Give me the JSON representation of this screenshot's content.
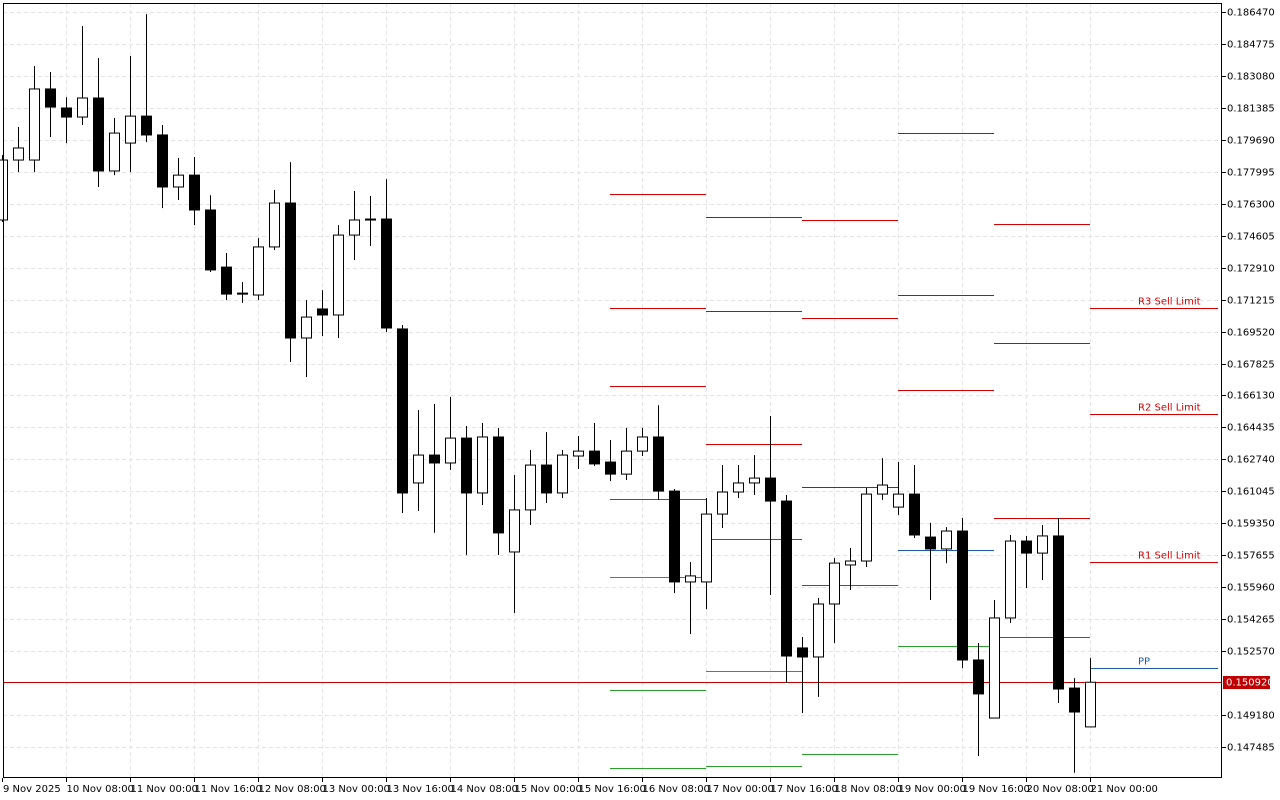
{
  "chart_data": {
    "type": "candlestick",
    "categories": [
      "9 Nov 2025",
      null,
      null,
      null,
      "10 Nov 08:00",
      null,
      null,
      null,
      "11 Nov 00:00",
      null,
      null,
      null,
      "11 Nov 16:00",
      null,
      null,
      null,
      "12 Nov 08:00",
      null,
      null,
      null,
      "13 Nov 00:00",
      null,
      null,
      null,
      "13 Nov 16:00",
      null,
      null,
      null,
      "14 Nov 08:00",
      null,
      null,
      null,
      "15 Nov 00:00",
      null,
      null,
      null,
      "15 Nov 16:00",
      null,
      null,
      null,
      "16 Nov 08:00",
      null,
      null,
      null,
      "17 Nov 00:00",
      null,
      null,
      null,
      "17 Nov 16:00",
      null,
      null,
      null,
      "18 Nov 08:00",
      null,
      null,
      null,
      "19 Nov 00:00",
      null,
      null,
      null,
      "19 Nov 16:00",
      null,
      null,
      null,
      "20 Nov 08:00",
      null,
      null,
      null,
      "21 Nov 00:00"
    ],
    "open": [
      0.17544,
      0.17862,
      0.17862,
      0.18239,
      0.18138,
      0.1809,
      0.18191,
      0.17804,
      0.17952,
      0.18095,
      0.17995,
      0.17719,
      0.17782,
      0.17597,
      0.17294,
      0.17151,
      0.17146,
      0.17401,
      0.17634,
      0.16918,
      0.17072,
      0.1704,
      0.17464,
      0.17549,
      0.17549,
      0.16966,
      0.16149,
      0.16297,
      0.16255,
      0.16387,
      0.16096,
      0.16393,
      0.15783,
      0.16006,
      0.16244,
      0.16096,
      0.16292,
      0.16318,
      0.1626,
      0.16196,
      0.16318,
      0.16393,
      0.16106,
      0.15624,
      0.15624,
      0.15984,
      0.16101,
      0.16149,
      0.16175,
      0.16053,
      0.15274,
      0.15226,
      0.15507,
      0.15714,
      0.15735,
      0.1609,
      0.16021,
      0.1609,
      0.15862,
      0.15799,
      0.15894,
      0.1521,
      0.14902,
      0.15433,
      0.15841,
      0.15777,
      0.15868,
      0.15061,
      0.14855
    ],
    "high": [
      0.17889,
      0.18037,
      0.18361,
      0.18329,
      0.18196,
      0.18573,
      0.18403,
      0.18085,
      0.18414,
      0.18636,
      0.18048,
      0.17873,
      0.17878,
      0.17676,
      0.17369,
      0.17215,
      0.17448,
      0.17703,
      0.17851,
      0.17119,
      0.17172,
      0.17517,
      0.17698,
      0.17671,
      0.17761,
      0.16987,
      0.16536,
      0.16568,
      0.16605,
      0.16451,
      0.16467,
      0.16441,
      0.16191,
      0.16324,
      0.16419,
      0.16324,
      0.16398,
      0.16467,
      0.16377,
      0.16441,
      0.16441,
      0.16562,
      0.16117,
      0.1573,
      0.16069,
      0.16244,
      0.16244,
      0.16297,
      0.16504,
      0.16085,
      0.15332,
      0.15539,
      0.15751,
      0.15804,
      0.16122,
      0.16281,
      0.1626,
      0.16244,
      0.15937,
      0.15915,
      0.15963,
      0.153,
      0.15528,
      0.15873,
      0.15868,
      0.15926,
      0.15963,
      0.15114,
      0.1522
    ],
    "low": [
      0.17533,
      0.17798,
      0.17798,
      0.17984,
      0.17952,
      0.18048,
      0.17719,
      0.17782,
      0.17798,
      0.17957,
      0.17607,
      0.1765,
      0.17517,
      0.17268,
      0.17119,
      0.17104,
      0.17119,
      0.17385,
      0.16791,
      0.16711,
      0.16928,
      0.16918,
      0.17332,
      0.17406,
      0.1695,
      0.1599,
      0.16,
      0.15884,
      0.16218,
      0.15767,
      0.16032,
      0.15767,
      0.15459,
      0.15926,
      0.16043,
      0.16069,
      0.16223,
      0.16239,
      0.16159,
      0.16165,
      0.16292,
      0.16059,
      0.15565,
      0.15348,
      0.1548,
      0.1591,
      0.16069,
      0.16085,
      0.15555,
      0.15088,
      0.14929,
      0.15014,
      0.153,
      0.15581,
      0.15703,
      0.16059,
      0.15979,
      0.15857,
      0.15528,
      0.15724,
      0.15167,
      0.14701,
      0.14902,
      0.15406,
      0.15592,
      0.15634,
      0.14982,
      0.14611,
      0.14855
    ],
    "close": [
      0.17862,
      0.17926,
      0.18239,
      0.18143,
      0.1809,
      0.18191,
      0.17804,
      0.18005,
      0.18095,
      0.17995,
      0.17719,
      0.17782,
      0.17597,
      0.17279,
      0.17151,
      0.17156,
      0.17401,
      0.17634,
      0.16918,
      0.17029,
      0.1704,
      0.17464,
      0.17544,
      0.17544,
      0.16971,
      0.16096,
      0.16297,
      0.16255,
      0.16387,
      0.16096,
      0.16393,
      0.15884,
      0.16006,
      0.16244,
      0.16096,
      0.16297,
      0.16318,
      0.1625,
      0.16196,
      0.16318,
      0.16393,
      0.16106,
      0.15624,
      0.15656,
      0.15984,
      0.16101,
      0.16149,
      0.16175,
      0.16053,
      0.15231,
      0.15226,
      0.15507,
      0.15724,
      0.15735,
      0.1609,
      0.16138,
      0.1609,
      0.15873,
      0.15799,
      0.15894,
      0.1521,
      0.1503,
      0.15433,
      0.15841,
      0.15777,
      0.15868,
      0.15056,
      0.14934,
      0.15092
    ],
    "up_color": "#ffffff",
    "down_color": "#000000",
    "ylim": [
      0.14584,
      0.18695
    ],
    "yticks": [
      {
        "value": 0.18647,
        "label": "0.186470"
      },
      0.184775,
      {
        "value": 0.18308,
        "label": "0.183080"
      },
      0.181385,
      {
        "value": 0.17969,
        "label": "0.179690"
      },
      0.177995,
      {
        "value": 0.1763,
        "label": "0.176300"
      },
      0.174605,
      {
        "value": 0.17291,
        "label": "0.172910"
      },
      0.171215,
      {
        "value": 0.16952,
        "label": "0.169520"
      },
      0.167825,
      {
        "value": 0.16613,
        "label": "0.166130"
      },
      0.164435,
      {
        "value": 0.16274,
        "label": "0.162740"
      },
      0.161045,
      {
        "value": 0.15935,
        "label": "0.159350"
      },
      0.157655,
      {
        "value": 0.15596,
        "label": "0.155960"
      },
      0.154265,
      {
        "value": 0.15257,
        "label": "0.152570"
      },
      {
        "value": 0.14918,
        "label": "0.149180"
      },
      0.147485
    ],
    "grid": true,
    "current_price": {
      "value": 0.15092,
      "label": "0.150920"
    },
    "current_price_color": "#c00000",
    "resistance_color": "#d40000",
    "pivot_color": "#1f5ca8",
    "support_color": "#2ca02c",
    "pivots": [
      {
        "start": 38,
        "resistance": [
          0.17682,
          0.17077,
          0.16663
        ],
        "pivot": 0.16064,
        "support": [
          0.1565,
          0.15051,
          0.14637
        ]
      },
      {
        "start": 44,
        "resistance": [
          0.1756,
          0.17061,
          0.16356
        ],
        "pivot": 0.15852,
        "support": [
          0.15152,
          0.14648
        ]
      },
      {
        "start": 50,
        "resistance": [
          0.17544,
          0.17024,
          0.16128
        ],
        "pivot": 0.15608,
        "support": [
          0.14711
        ]
      },
      {
        "start": 56,
        "resistance": [
          0.18005,
          0.17146,
          0.16642
        ],
        "pivot": 0.15793,
        "support": [
          0.15284
        ]
      },
      {
        "start": 62,
        "resistance": [
          0.17523,
          0.16891,
          0.15963
        ],
        "pivot": 0.15332,
        "support": []
      },
      {
        "start": 68,
        "resistance": [
          {
            "value": 0.17077,
            "label": "R3 Sell Limit"
          },
          {
            "value": 0.16515,
            "label": "R2 Sell Limit"
          },
          {
            "value": 0.1573,
            "label": "R1 Sell Limit"
          }
        ],
        "pivot": {
          "value": 0.15167,
          "label": "PP"
        },
        "support": []
      }
    ]
  }
}
